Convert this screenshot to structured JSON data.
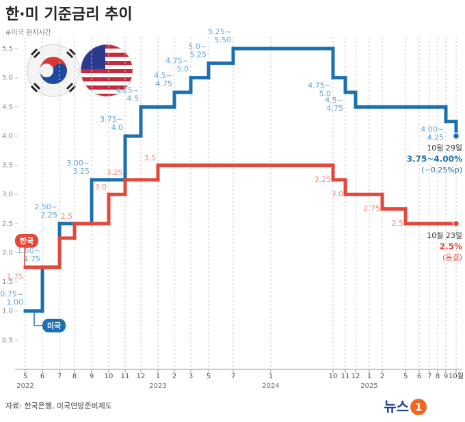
{
  "chart_data": {
    "type": "step-line",
    "title": "한·미 기준금리 추이",
    "subtitle": "※미국 현지시간",
    "source": "자료: 한국은행, 미국연방준비제도",
    "logo": [
      "뉴스",
      "1"
    ],
    "categories": [
      "5",
      "6",
      "7",
      "8",
      "9",
      "10",
      "11",
      "12",
      "1",
      "2",
      "3",
      "5",
      "7",
      "1",
      "10",
      "11",
      "12",
      "1",
      "2",
      "5",
      "6",
      "7",
      "8",
      "9",
      "10월"
    ],
    "year_labels": [
      "2022",
      null,
      null,
      null,
      null,
      null,
      null,
      null,
      "2023",
      null,
      null,
      null,
      null,
      "2024",
      null,
      null,
      null,
      "2025",
      null,
      null,
      null,
      null,
      null,
      null,
      null
    ],
    "series": [
      {
        "name": "미국",
        "color": "#1c6fb0",
        "label_color": "#62a3d6",
        "values": [
          1.0,
          1.75,
          2.5,
          2.5,
          3.25,
          3.25,
          4.0,
          4.5,
          4.5,
          4.75,
          5.0,
          5.25,
          5.5,
          5.5,
          5.0,
          4.75,
          4.5,
          4.5,
          4.5,
          4.5,
          4.5,
          4.5,
          4.5,
          4.25,
          4.0
        ],
        "value_labels": [
          "0.75~1.00",
          "1.50~1.75",
          "2.50~2.25",
          null,
          "3.00~3.25",
          null,
          "3.75~4.0",
          "4.25~4.5",
          null,
          "4.5~4.75",
          "4.75~5.0",
          "5.0~5.25",
          "5.25~5.50",
          null,
          "4.75~5.0",
          "4.5~4.75",
          null,
          null,
          null,
          null,
          null,
          null,
          null,
          "4.00~4.25",
          null
        ]
      },
      {
        "name": "한국",
        "color": "#e5473b",
        "label_color": "#ef8a80",
        "values": [
          1.75,
          1.75,
          2.25,
          2.5,
          2.5,
          3.0,
          3.25,
          3.25,
          3.5,
          3.5,
          3.5,
          3.5,
          3.5,
          3.5,
          3.25,
          3.0,
          3.0,
          3.0,
          2.75,
          2.5,
          2.5,
          2.5,
          2.5,
          2.5,
          2.5
        ],
        "value_labels": [
          "1.75",
          null,
          null,
          "2.5",
          null,
          "3.0",
          "3.25",
          null,
          "3.5",
          null,
          null,
          null,
          null,
          null,
          "3.25",
          "3.0",
          null,
          null,
          "2.75",
          "2.5",
          null,
          null,
          null,
          null,
          null
        ]
      }
    ],
    "annotations": [
      {
        "series": 0,
        "lines": [
          "10월 29일",
          "3.75~4.00%",
          "(−0.25%p)"
        ]
      },
      {
        "series": 1,
        "lines": [
          "10월 23일",
          "2.5%",
          "(동결)"
        ]
      }
    ],
    "ylim": [
      0,
      5.7
    ],
    "yticks": [
      0.5,
      {
        "value": 1,
        "label": "1.0"
      },
      1.5,
      {
        "value": 2,
        "label": "2.0"
      },
      2.5,
      {
        "value": 3,
        "label": "3.0"
      },
      3.5,
      {
        "value": 4,
        "label": "4.0"
      },
      4.5,
      {
        "value": 5,
        "label": "5.0"
      },
      5.5
    ],
    "grid": true
  }
}
